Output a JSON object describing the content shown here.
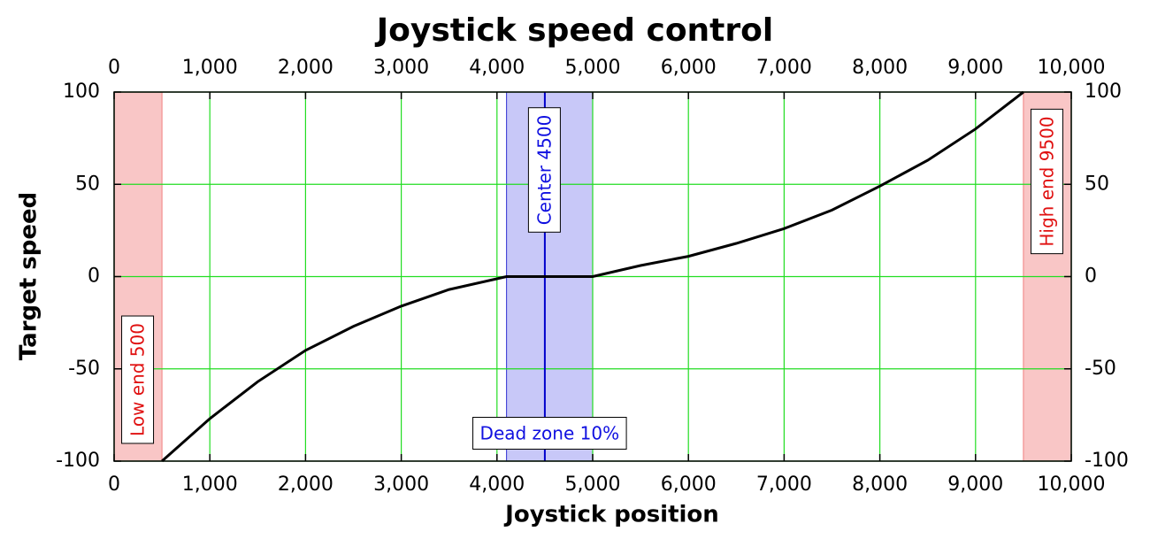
{
  "chart_data": {
    "type": "line",
    "title": "Joystick speed control",
    "x_label": "Joystick position",
    "y_label": "Target speed",
    "x": [
      500,
      1000,
      1500,
      2000,
      2500,
      3000,
      3500,
      4100,
      4500,
      5000,
      5500,
      6000,
      6500,
      7000,
      7500,
      8000,
      8500,
      9000,
      9500
    ],
    "values": [
      -100,
      -77,
      -57,
      -40,
      -27,
      -16,
      -7,
      0,
      0,
      0,
      6,
      11,
      18,
      26,
      36,
      49,
      63,
      80,
      100
    ],
    "color": "#000000",
    "xlim": [
      0,
      10000
    ],
    "xticks": [
      0,
      {
        "value": 1000,
        "label": "1,000"
      },
      {
        "value": 2000,
        "label": "2,000"
      },
      {
        "value": 3000,
        "label": "3,000"
      },
      {
        "value": 4000,
        "label": "4,000"
      },
      {
        "value": 5000,
        "label": "5,000"
      },
      {
        "value": 6000,
        "label": "6,000"
      },
      {
        "value": 7000,
        "label": "7,000"
      },
      {
        "value": 8000,
        "label": "8,000"
      },
      {
        "value": 9000,
        "label": "9,000"
      },
      {
        "value": 10000,
        "label": "10,000"
      }
    ],
    "ylim": [
      -100,
      100
    ],
    "yticks": [
      -100,
      -50,
      0,
      50,
      100
    ],
    "grid": true,
    "grid_color": "#22dd22",
    "regions": [
      {
        "xlim": [
          0,
          500
        ],
        "color": "#f9c6c6",
        "edge": "#f08080",
        "label": "Low end 500",
        "label_color": "#e01010",
        "label_pos": "bottom"
      },
      {
        "xlim": [
          9500,
          10000
        ],
        "color": "#f9c6c6",
        "edge": "#f08080",
        "label": "High end 9500",
        "label_color": "#e01010",
        "label_pos": "top"
      },
      {
        "xlim": [
          4100,
          5000
        ],
        "color": "#c8c8f8",
        "edge": "#3030d0",
        "label": "Dead zone 10%",
        "label_color": "#1010e0",
        "label_pos": "horizontal"
      }
    ],
    "vlines": [
      {
        "x": 4500,
        "color": "#0000cc",
        "label": "Center 4500",
        "label_color": "#1010e0"
      }
    ]
  }
}
